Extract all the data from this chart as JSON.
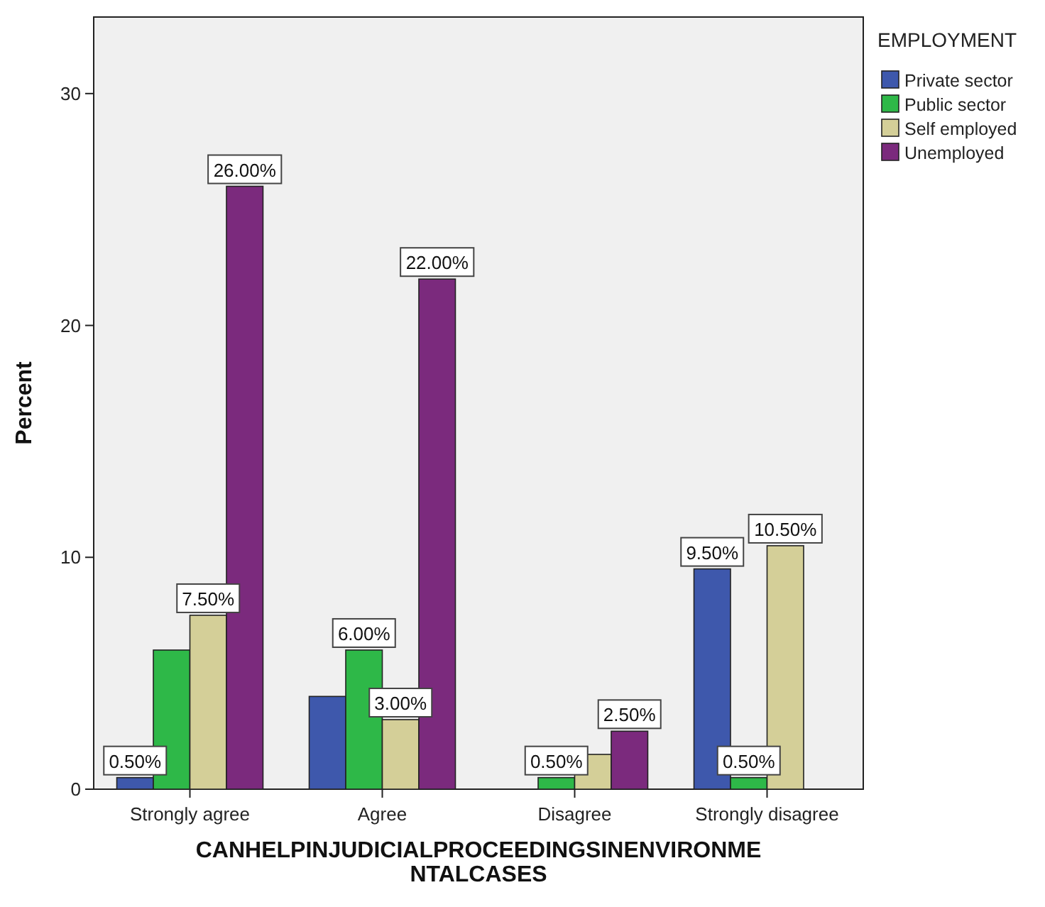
{
  "chart_data": {
    "type": "bar",
    "xlabel": "CANHELPINJUDICIALPROCEEDINGSINENVIRONMENTALCASES",
    "ylabel": "Percent",
    "legend_title": "EMPLOYMENT",
    "legend": "top right",
    "grid": false,
    "categories": [
      "Strongly agree",
      "Agree",
      "Disagree",
      "Strongly disagree"
    ],
    "ylim": [
      0,
      33.3
    ],
    "yticks": [
      0,
      10,
      20,
      30
    ],
    "series": [
      {
        "name": "Private sector",
        "color": "#3e58ac",
        "values": [
          0.5,
          4,
          null,
          9.5
        ],
        "value_labels": [
          "0.50%",
          null,
          null,
          "9.50%"
        ]
      },
      {
        "name": "Public sector",
        "color": "#2eb848",
        "values": [
          6,
          6,
          0.5,
          0.5
        ],
        "value_labels": [
          null,
          "6.00%",
          "0.50%",
          "0.50%"
        ]
      },
      {
        "name": "Self employed",
        "color": "#d4cf98",
        "values": [
          7.5,
          3,
          1.5,
          10.5
        ],
        "value_labels": [
          "7.50%",
          "3.00%",
          null,
          "10.50%"
        ]
      },
      {
        "name": "Unemployed",
        "color": "#7b2a7d",
        "values": [
          26,
          22,
          2.5,
          null
        ],
        "value_labels": [
          "26.00%",
          "22.00%",
          "2.50%",
          null
        ]
      }
    ]
  }
}
